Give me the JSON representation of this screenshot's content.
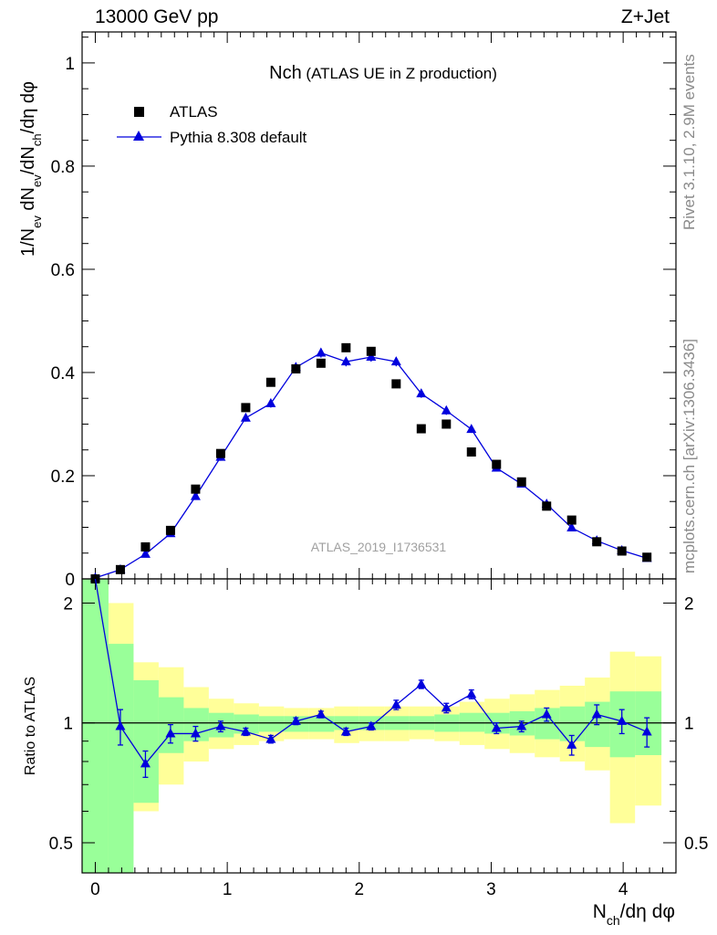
{
  "header": {
    "energy_label": "13000 GeV pp",
    "process_label": "Z+Jet"
  },
  "side_text": {
    "rivet": "Rivet 3.1.10,  2.9M events",
    "mcplots": "mcplots.cern.ch [arXiv:1306.3436]"
  },
  "watermark": "ATLAS_2019_I1736531",
  "colors": {
    "mc_line": "#0000dd",
    "data_marker": "#000000",
    "band_inner": "#99ff99",
    "band_outer": "#ffff99"
  },
  "chart_data": {
    "type": "scatter",
    "title": "Nch",
    "subtitle": "(ATLAS UE in Z production)",
    "xlabel": "N_ch/dη dφ",
    "ylabel": "1/N_ev dN_ev/dN_ch/dη dφ",
    "ratio_ylabel": "Ratio to ATLAS",
    "xlim": [
      -0.1,
      4.4
    ],
    "ylim": [
      0,
      1.06
    ],
    "ratio_ylim": [
      0.42,
      2.3
    ],
    "ratio_log_scale": true,
    "xticks": [
      0,
      1,
      2,
      3,
      4
    ],
    "yticks": [
      0,
      0.2,
      0.4,
      0.6,
      0.8,
      1
    ],
    "ytick_labels": [
      "0",
      "0.2",
      "0.4",
      "0.6",
      "0.8",
      "1"
    ],
    "ratio_yticks": [
      0.5,
      1,
      2
    ],
    "ratio_ytick_labels": [
      "0.5",
      "1",
      "2"
    ],
    "legend": {
      "placement": "top-left",
      "entries": [
        "ATLAS",
        "Pythia 8.308 default"
      ]
    },
    "x": [
      0.0,
      0.19,
      0.38,
      0.57,
      0.76,
      0.95,
      1.14,
      1.33,
      1.52,
      1.71,
      1.9,
      2.09,
      2.28,
      2.47,
      2.66,
      2.85,
      3.04,
      3.23,
      3.42,
      3.61,
      3.8,
      3.99,
      4.18
    ],
    "bin_edges": [
      -0.1,
      0.1,
      0.29,
      0.48,
      0.67,
      0.86,
      1.05,
      1.24,
      1.43,
      1.62,
      1.81,
      2.0,
      2.19,
      2.38,
      2.57,
      2.76,
      2.95,
      3.14,
      3.33,
      3.52,
      3.71,
      3.9,
      4.09,
      4.29
    ],
    "series": [
      {
        "name": "ATLAS",
        "values": [
          0.0,
          0.018,
          0.062,
          0.094,
          0.174,
          0.243,
          0.332,
          0.381,
          0.407,
          0.418,
          0.448,
          0.441,
          0.378,
          0.291,
          0.3,
          0.246,
          0.222,
          0.188,
          0.141,
          0.114,
          0.072,
          0.054,
          0.042
        ]
      },
      {
        "name": "Pythia 8.308 default",
        "values": [
          0.002,
          0.018,
          0.048,
          0.088,
          0.16,
          0.236,
          0.312,
          0.34,
          0.41,
          0.438,
          0.421,
          0.43,
          0.421,
          0.359,
          0.326,
          0.29,
          0.215,
          0.184,
          0.145,
          0.099,
          0.074,
          0.055,
          0.04
        ],
        "errors": [
          0.001,
          0.002,
          0.004,
          0.005,
          0.006,
          0.007,
          0.007,
          0.008,
          0.009,
          0.009,
          0.009,
          0.009,
          0.009,
          0.008,
          0.008,
          0.007,
          0.006,
          0.005,
          0.005,
          0.004,
          0.003,
          0.003,
          0.003
        ]
      }
    ],
    "ratio": {
      "values": [
        3.2,
        0.98,
        0.79,
        0.94,
        0.94,
        0.98,
        0.95,
        0.91,
        1.01,
        1.05,
        0.95,
        0.98,
        1.11,
        1.25,
        1.09,
        1.18,
        0.97,
        0.98,
        1.05,
        0.88,
        1.05,
        1.01,
        0.95
      ],
      "errors": [
        0.0,
        0.1,
        0.06,
        0.05,
        0.04,
        0.03,
        0.02,
        0.02,
        0.02,
        0.02,
        0.02,
        0.02,
        0.03,
        0.03,
        0.03,
        0.03,
        0.03,
        0.03,
        0.04,
        0.05,
        0.06,
        0.07,
        0.08
      ],
      "band_inner_lo": [
        0.3,
        0.3,
        0.63,
        0.84,
        0.9,
        0.92,
        0.94,
        0.95,
        0.95,
        0.95,
        0.96,
        0.96,
        0.96,
        0.96,
        0.95,
        0.95,
        0.94,
        0.93,
        0.91,
        0.9,
        0.87,
        0.82,
        0.83
      ],
      "band_inner_hi": [
        2.5,
        1.58,
        1.28,
        1.16,
        1.09,
        1.06,
        1.05,
        1.04,
        1.04,
        1.04,
        1.04,
        1.04,
        1.04,
        1.04,
        1.05,
        1.06,
        1.06,
        1.07,
        1.09,
        1.1,
        1.13,
        1.2,
        1.2
      ],
      "band_outer_lo": [
        0.3,
        0.49,
        0.6,
        0.7,
        0.8,
        0.86,
        0.88,
        0.9,
        0.91,
        0.91,
        0.89,
        0.9,
        0.9,
        0.91,
        0.9,
        0.88,
        0.86,
        0.84,
        0.82,
        0.8,
        0.76,
        0.56,
        0.62
      ],
      "band_outer_hi": [
        2.5,
        2.0,
        1.42,
        1.38,
        1.23,
        1.15,
        1.12,
        1.1,
        1.09,
        1.09,
        1.1,
        1.1,
        1.1,
        1.1,
        1.1,
        1.13,
        1.15,
        1.18,
        1.21,
        1.24,
        1.3,
        1.51,
        1.47
      ]
    }
  }
}
